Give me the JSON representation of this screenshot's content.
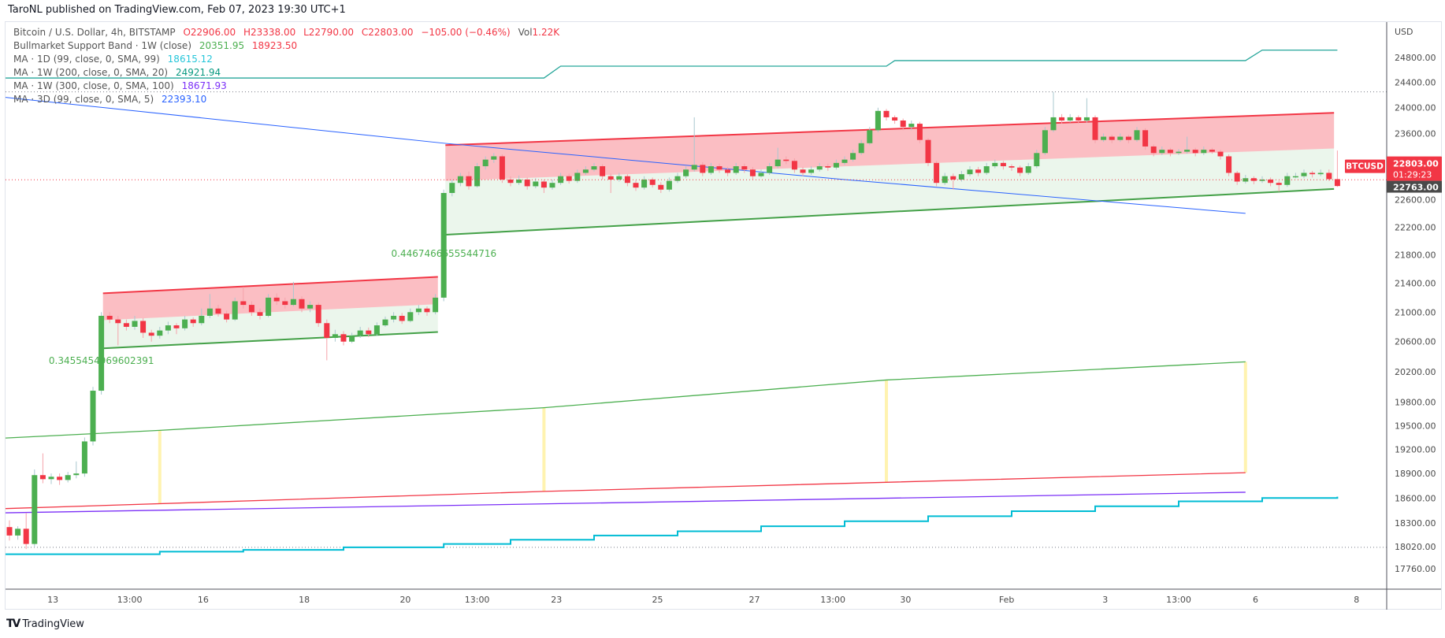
{
  "publisher": "TaroNL published on TradingView.com, Feb 07, 2023 19:30 UTC+1",
  "legend": {
    "symbol": "Bitcoin / U.S. Dollar, 4h, BITSTAMP",
    "open": "O22906.00",
    "high": "H23338.00",
    "low": "L22790.00",
    "close": "C22803.00",
    "change": "−105.00 (−0.46%)",
    "volume_label": "Vol",
    "volume": "1.22K",
    "indicators": [
      {
        "name": "Bullmarket Support Band · 1W (close)",
        "values": [
          "20351.95",
          "18923.50"
        ]
      },
      {
        "name": "MA · 1D (99, close, 0, SMA, 99)",
        "values": [
          "18615.12"
        ]
      },
      {
        "name": "MA · 1W (200, close, 0, SMA, 20)",
        "values": [
          "24921.94"
        ]
      },
      {
        "name": "MA · 1W (300, close, 0, SMA, 100)",
        "values": [
          "18671.93"
        ]
      },
      {
        "name": "MA · 3D (99, close, 0, SMA, 5)",
        "values": [
          "22393.10"
        ]
      }
    ]
  },
  "footer": {
    "logo": "TV",
    "brand": "TradingView"
  },
  "colors": {
    "up": "#4caf50",
    "down": "#f23645",
    "up_wick": "#a9c8cf",
    "down_wick": "#f5a3ab",
    "teal": "#26a69a",
    "blue": "#2962ff",
    "band_green": "#4caf50",
    "band_red": "#f23645",
    "purple": "#7b2ff7",
    "cyan": "#00bcd4",
    "marker": "#fff3b0"
  },
  "chart_data": {
    "type": "candlestick",
    "title": "Bitcoin / U.S. Dollar, 4h, BITSTAMP",
    "ylabel": "USD",
    "yscale": "log",
    "ylim": [
      17600,
      25100
    ],
    "price_ticks": [
      "24800.00",
      "24400.00",
      "24000.00",
      "23600.00",
      "22600.00",
      "22200.00",
      "21800.00",
      "21400.00",
      "21000.00",
      "20600.00",
      "20200.00",
      "19800.00",
      "19500.00",
      "19200.00",
      "18900.00",
      "18600.00",
      "18300.00",
      "18020.00",
      "17760.00"
    ],
    "time_ticks": [
      {
        "label": "13",
        "bar": 5.2
      },
      {
        "label": "13:00",
        "bar": 14.4
      },
      {
        "label": "16",
        "bar": 23.2
      },
      {
        "label": "18",
        "bar": 35.3
      },
      {
        "label": "20",
        "bar": 47.4
      },
      {
        "label": "13:00",
        "bar": 56
      },
      {
        "label": "23",
        "bar": 65.5
      },
      {
        "label": "25",
        "bar": 77.6
      },
      {
        "label": "27",
        "bar": 89.2
      },
      {
        "label": "13:00",
        "bar": 98.6
      },
      {
        "label": "30",
        "bar": 107.3
      },
      {
        "label": "Feb",
        "bar": 119.4
      },
      {
        "label": "3",
        "bar": 131.2
      },
      {
        "label": "13:00",
        "bar": 140
      },
      {
        "label": "6",
        "bar": 149.2
      },
      {
        "label": "8",
        "bar": 161.3
      }
    ],
    "last_price": {
      "symbol": "BTCUSD",
      "price": "22803.00",
      "countdown": "01:29:23",
      "value": 22803
    },
    "support_price": {
      "price": "22763.00",
      "value": 22763
    },
    "hlines": [
      24250,
      18010
    ],
    "candles": [
      [
        18250,
        18330,
        18090,
        18150
      ],
      [
        18150,
        18260,
        18100,
        18230
      ],
      [
        18230,
        18420,
        17990,
        18050
      ],
      [
        18050,
        18950,
        18020,
        18880
      ],
      [
        18880,
        19150,
        18780,
        18830
      ],
      [
        18830,
        18900,
        18770,
        18860
      ],
      [
        18860,
        18900,
        18760,
        18820
      ],
      [
        18820,
        18920,
        18790,
        18880
      ],
      [
        18880,
        19050,
        18840,
        18900
      ],
      [
        18900,
        19350,
        18860,
        19300
      ],
      [
        19300,
        20000,
        19250,
        19950
      ],
      [
        19950,
        21000,
        19900,
        20950
      ],
      [
        20950,
        21000,
        20850,
        20900
      ],
      [
        20900,
        20950,
        20550,
        20850
      ],
      [
        20850,
        20900,
        20750,
        20800
      ],
      [
        20800,
        20950,
        20760,
        20880
      ],
      [
        20880,
        20920,
        20650,
        20720
      ],
      [
        20720,
        20760,
        20600,
        20680
      ],
      [
        20680,
        20800,
        20640,
        20750
      ],
      [
        20750,
        20870,
        20700,
        20820
      ],
      [
        20820,
        20850,
        20700,
        20780
      ],
      [
        20780,
        20950,
        20750,
        20900
      ],
      [
        20900,
        20930,
        20800,
        20850
      ],
      [
        20850,
        21050,
        20820,
        20950
      ],
      [
        20950,
        21250,
        20920,
        21050
      ],
      [
        21050,
        21100,
        20940,
        20980
      ],
      [
        20980,
        21020,
        20860,
        20900
      ],
      [
        20900,
        21200,
        20880,
        21150
      ],
      [
        21150,
        21350,
        21050,
        21100
      ],
      [
        21100,
        21150,
        20950,
        21000
      ],
      [
        21000,
        21050,
        20900,
        20950
      ],
      [
        20950,
        21250,
        20930,
        21200
      ],
      [
        21200,
        21260,
        21100,
        21150
      ],
      [
        21150,
        21200,
        21050,
        21100
      ],
      [
        21100,
        21420,
        21080,
        21180
      ],
      [
        21180,
        21220,
        21000,
        21050
      ],
      [
        21050,
        21150,
        21000,
        21100
      ],
      [
        21100,
        21130,
        20800,
        20850
      ],
      [
        20850,
        20900,
        20350,
        20650
      ],
      [
        20650,
        20760,
        20600,
        20700
      ],
      [
        20700,
        20740,
        20550,
        20600
      ],
      [
        20600,
        20720,
        20580,
        20680
      ],
      [
        20680,
        20800,
        20650,
        20750
      ],
      [
        20750,
        20790,
        20660,
        20700
      ],
      [
        20700,
        20860,
        20680,
        20820
      ],
      [
        20820,
        20940,
        20800,
        20900
      ],
      [
        20900,
        21000,
        20860,
        20950
      ],
      [
        20950,
        20990,
        20840,
        20880
      ],
      [
        20880,
        21050,
        20860,
        21000
      ],
      [
        21000,
        21100,
        20960,
        21050
      ],
      [
        21050,
        21080,
        20950,
        21000
      ],
      [
        21000,
        21250,
        20970,
        21200
      ],
      [
        21200,
        22750,
        21150,
        22700
      ],
      [
        22700,
        22900,
        22650,
        22850
      ],
      [
        22850,
        23000,
        22800,
        22950
      ],
      [
        22950,
        23020,
        22750,
        22800
      ],
      [
        22800,
        23150,
        22780,
        23100
      ],
      [
        23100,
        23250,
        23050,
        23200
      ],
      [
        23200,
        23300,
        23150,
        23250
      ],
      [
        23250,
        23280,
        22850,
        22900
      ],
      [
        22900,
        22950,
        22800,
        22850
      ],
      [
        22850,
        22960,
        22820,
        22900
      ],
      [
        22900,
        22930,
        22750,
        22800
      ],
      [
        22800,
        22920,
        22770,
        22870
      ],
      [
        22870,
        22900,
        22700,
        22780
      ],
      [
        22780,
        22900,
        22750,
        22850
      ],
      [
        22850,
        23000,
        22820,
        22950
      ],
      [
        22950,
        22990,
        22840,
        22880
      ],
      [
        22880,
        23050,
        22850,
        23000
      ],
      [
        23000,
        23100,
        22970,
        23050
      ],
      [
        23050,
        23150,
        23020,
        23100
      ],
      [
        23100,
        23130,
        22900,
        22950
      ],
      [
        22950,
        22990,
        22700,
        22900
      ],
      [
        22900,
        23000,
        22870,
        22950
      ],
      [
        22950,
        22980,
        22800,
        22850
      ],
      [
        22850,
        22890,
        22730,
        22780
      ],
      [
        22780,
        22950,
        22750,
        22900
      ],
      [
        22900,
        22930,
        22780,
        22820
      ],
      [
        22820,
        22860,
        22700,
        22750
      ],
      [
        22750,
        22930,
        22720,
        22880
      ],
      [
        22880,
        23000,
        22850,
        22950
      ],
      [
        22950,
        23100,
        22920,
        23050
      ],
      [
        23050,
        23850,
        23020,
        23120
      ],
      [
        23120,
        23160,
        22950,
        23000
      ],
      [
        23000,
        23150,
        22970,
        23100
      ],
      [
        23100,
        23140,
        23000,
        23050
      ],
      [
        23050,
        23090,
        22950,
        23000
      ],
      [
        23000,
        23150,
        22970,
        23100
      ],
      [
        23100,
        23140,
        23000,
        23050
      ],
      [
        23050,
        23090,
        22900,
        22950
      ],
      [
        22950,
        23050,
        22930,
        23000
      ],
      [
        23000,
        23150,
        22970,
        23100
      ],
      [
        23100,
        23380,
        23070,
        23200
      ],
      [
        23200,
        23250,
        23130,
        23180
      ],
      [
        23180,
        23220,
        23000,
        23050
      ],
      [
        23050,
        23090,
        22950,
        23000
      ],
      [
        23000,
        23100,
        22970,
        23050
      ],
      [
        23050,
        23150,
        23020,
        23100
      ],
      [
        23100,
        23140,
        23030,
        23080
      ],
      [
        23080,
        23200,
        23050,
        23150
      ],
      [
        23150,
        23250,
        23120,
        23200
      ],
      [
        23200,
        23350,
        23170,
        23300
      ],
      [
        23300,
        23500,
        23270,
        23450
      ],
      [
        23450,
        23700,
        23420,
        23650
      ],
      [
        23650,
        24000,
        23620,
        23950
      ],
      [
        23950,
        23980,
        23800,
        23850
      ],
      [
        23850,
        23880,
        23750,
        23800
      ],
      [
        23800,
        23830,
        23650,
        23700
      ],
      [
        23700,
        23800,
        23650,
        23750
      ],
      [
        23750,
        23780,
        23450,
        23500
      ],
      [
        23500,
        23530,
        23100,
        23150
      ],
      [
        23150,
        23180,
        22800,
        22850
      ],
      [
        22850,
        23000,
        22820,
        22950
      ],
      [
        22950,
        22990,
        22750,
        22900
      ],
      [
        22900,
        23030,
        22870,
        22980
      ],
      [
        22980,
        23100,
        22950,
        23050
      ],
      [
        23050,
        23090,
        22950,
        23000
      ],
      [
        23000,
        23150,
        22970,
        23100
      ],
      [
        23100,
        23200,
        23070,
        23150
      ],
      [
        23150,
        23180,
        23050,
        23100
      ],
      [
        23100,
        23130,
        23030,
        23080
      ],
      [
        23080,
        23110,
        22950,
        23000
      ],
      [
        23000,
        23150,
        22970,
        23100
      ],
      [
        23100,
        23350,
        23070,
        23300
      ],
      [
        23300,
        23700,
        23270,
        23650
      ],
      [
        23650,
        24250,
        23620,
        23850
      ],
      [
        23850,
        23900,
        23750,
        23800
      ],
      [
        23800,
        23900,
        23770,
        23850
      ],
      [
        23850,
        23880,
        23750,
        23800
      ],
      [
        23800,
        24150,
        23770,
        23850
      ],
      [
        23850,
        23880,
        23450,
        23500
      ],
      [
        23500,
        23600,
        23470,
        23550
      ],
      [
        23550,
        23580,
        23450,
        23500
      ],
      [
        23500,
        23600,
        23470,
        23550
      ],
      [
        23550,
        23580,
        23450,
        23500
      ],
      [
        23500,
        23700,
        23470,
        23650
      ],
      [
        23650,
        23680,
        23350,
        23400
      ],
      [
        23400,
        23430,
        23250,
        23300
      ],
      [
        23300,
        23400,
        23270,
        23350
      ],
      [
        23350,
        23380,
        23250,
        23300
      ],
      [
        23300,
        23360,
        23270,
        23320
      ],
      [
        23320,
        23550,
        23290,
        23350
      ],
      [
        23350,
        23380,
        23250,
        23300
      ],
      [
        23300,
        23400,
        23270,
        23350
      ],
      [
        23350,
        23380,
        23290,
        23320
      ],
      [
        23320,
        23350,
        23200,
        23250
      ],
      [
        23250,
        23280,
        22950,
        23000
      ],
      [
        23000,
        23030,
        22820,
        22870
      ],
      [
        22870,
        22970,
        22840,
        22920
      ],
      [
        22920,
        22950,
        22830,
        22880
      ],
      [
        22880,
        22950,
        22850,
        22900
      ],
      [
        22900,
        22930,
        22800,
        22850
      ],
      [
        22850,
        22880,
        22720,
        22820
      ],
      [
        22820,
        23000,
        22790,
        22950
      ],
      [
        22950,
        23000,
        22920,
        22950
      ],
      [
        22950,
        23050,
        22920,
        23000
      ],
      [
        23000,
        23030,
        22930,
        22980
      ],
      [
        22980,
        23050,
        22950,
        23000
      ],
      [
        23000,
        23050,
        22880,
        22906
      ],
      [
        22906,
        23338,
        22790,
        22803
      ]
    ],
    "indicators": [
      {
        "name": "ma-1w-200",
        "color": "#26a69a",
        "step": false,
        "points": [
          [
            -1,
            24470
          ],
          [
            64,
            24470
          ],
          [
            66,
            24660
          ],
          [
            105,
            24660
          ],
          [
            106,
            24750
          ],
          [
            148,
            24750
          ],
          [
            150,
            24920
          ],
          [
            159,
            24920
          ]
        ]
      },
      {
        "name": "ma-3d-99",
        "color": "#2962ff",
        "step": false,
        "points": [
          [
            -1,
            24170
          ],
          [
            52,
            23450
          ],
          [
            100,
            22900
          ],
          [
            148,
            22400
          ]
        ]
      },
      {
        "name": "bull-band-upper",
        "color": "#4caf50",
        "step": false,
        "points": [
          [
            -1,
            19340
          ],
          [
            18,
            19440
          ],
          [
            64,
            19730
          ],
          [
            105,
            20090
          ],
          [
            148,
            20330
          ]
        ]
      },
      {
        "name": "bull-band-lower",
        "color": "#f23645",
        "step": false,
        "points": [
          [
            -1,
            18470
          ],
          [
            64,
            18680
          ],
          [
            148,
            18910
          ]
        ]
      },
      {
        "name": "ma-1w-300",
        "color": "#7b2ff7",
        "step": false,
        "points": [
          [
            -1,
            18420
          ],
          [
            148,
            18670
          ]
        ]
      },
      {
        "name": "ma-1d-99",
        "color": "#00bcd4",
        "step": true,
        "points": [
          [
            -1,
            17930
          ],
          [
            18,
            17960
          ],
          [
            28,
            17980
          ],
          [
            40,
            18010
          ],
          [
            52,
            18050
          ],
          [
            60,
            18100
          ],
          [
            70,
            18150
          ],
          [
            80,
            18200
          ],
          [
            90,
            18260
          ],
          [
            100,
            18320
          ],
          [
            110,
            18380
          ],
          [
            120,
            18440
          ],
          [
            130,
            18500
          ],
          [
            140,
            18560
          ],
          [
            150,
            18600
          ],
          [
            159,
            18615
          ]
        ]
      }
    ],
    "weekly_markers": [
      18,
      64,
      105,
      148
    ],
    "channels": [
      {
        "start": 11.2,
        "end": 51.3,
        "upper": [
          21260,
          21490
        ],
        "mid": [
          20890,
          21110
        ],
        "lower": [
          20510,
          20730
        ],
        "label": "0.3455454969602391"
      },
      {
        "start": 52.2,
        "end": 158.6,
        "upper": [
          23420,
          23920
        ],
        "mid": [
          22880,
          23370
        ],
        "lower": [
          22090,
          22760
        ],
        "label": "0.4467466655544716"
      }
    ]
  }
}
